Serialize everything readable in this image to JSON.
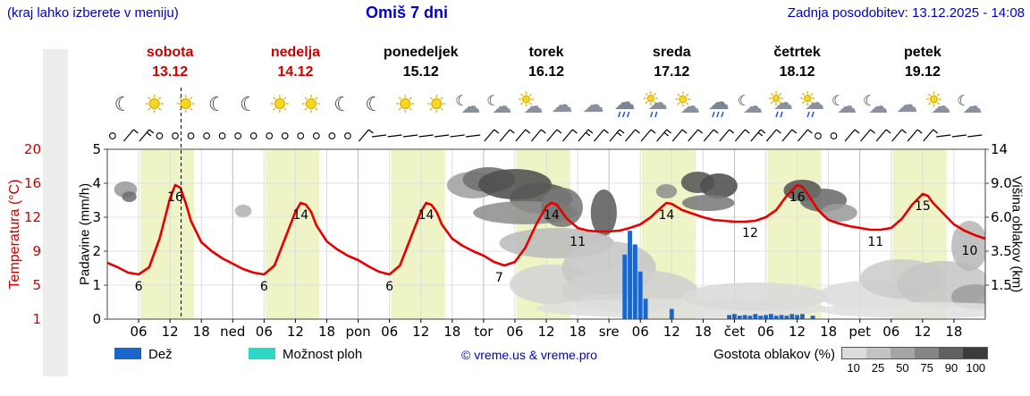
{
  "header": {
    "hint": "(kraj lahko izberete v meniju)",
    "title": "Omiš 7 dni",
    "updated": "Zadnja posodobitev: 13.12.2025 - 14:08"
  },
  "days": [
    {
      "name": "sobota",
      "date": "13.12",
      "weekend": true
    },
    {
      "name": "nedelja",
      "date": "14.12",
      "weekend": true
    },
    {
      "name": "ponedeljek",
      "date": "15.12",
      "weekend": false
    },
    {
      "name": "torek",
      "date": "16.12",
      "weekend": false
    },
    {
      "name": "sreda",
      "date": "17.12",
      "weekend": false
    },
    {
      "name": "četrtek",
      "date": "18.12",
      "weekend": false
    },
    {
      "name": "petek",
      "date": "19.12",
      "weekend": false
    }
  ],
  "axes": {
    "temp_label": "Temperatura (°C)",
    "temp_ticks": [
      "20",
      "16",
      "12",
      "9",
      "5",
      "1"
    ],
    "precip_label": "Padavine (mm/h)",
    "precip_ticks": [
      "5",
      "4",
      "3",
      "2",
      "1",
      "0"
    ],
    "cloud_label": "Višina oblakov (km)",
    "cloud_ticks": [
      "14",
      "9.0",
      "6.0",
      "3.5",
      "1.5"
    ],
    "hour_labels": [
      "06",
      "12",
      "18"
    ],
    "day_abbrevs": [
      "ned",
      "pon",
      "tor",
      "sre",
      "čet",
      "pet"
    ]
  },
  "legend": {
    "rain": "Dež",
    "showers": "Možnost ploh",
    "copyright": "© vreme.us & vreme.pro",
    "cloud_density": "Gostota oblakov (%)",
    "density_ticks": [
      "10",
      "25",
      "50",
      "75",
      "90",
      "100"
    ],
    "rain_color": "#1a66cc",
    "showers_color": "#2fd6c3"
  },
  "colors": {
    "accent_blue": "#0000cd",
    "weekend_red": "#cc0000",
    "temp_line": "#e60000",
    "rain_bar": "#1a66cc",
    "daylight_band": "#eef4c6"
  },
  "chart_data": {
    "type": "line",
    "title": "Omiš 7 dni",
    "x_axis": "time, hours from 13.12.2025 00:00, 7 days, ticks every 6 h",
    "y_axes": {
      "temperature_c": [
        1,
        5,
        9,
        12,
        16,
        20
      ],
      "precip_mmh": [
        0,
        1,
        2,
        3,
        4,
        5
      ],
      "cloud_height_km": [
        1.5,
        3.5,
        6.0,
        9.0,
        14
      ]
    },
    "daylight": [
      6.3,
      16.6
    ],
    "now_hour": 14.13,
    "series": [
      {
        "name": "Temperatura",
        "unit": "°C",
        "kind": "line",
        "color": "#e60000",
        "points": [
          [
            0,
            7.3
          ],
          [
            2,
            6.8
          ],
          [
            4,
            6.2
          ],
          [
            6,
            6
          ],
          [
            8,
            6.8
          ],
          [
            10,
            10
          ],
          [
            12,
            14.5
          ],
          [
            13,
            16
          ],
          [
            14,
            15.7
          ],
          [
            15,
            14
          ],
          [
            16,
            12
          ],
          [
            18,
            9.6
          ],
          [
            20,
            8.6
          ],
          [
            22,
            7.8
          ],
          [
            24,
            7.2
          ],
          [
            26,
            6.6
          ],
          [
            28,
            6.2
          ],
          [
            30,
            6
          ],
          [
            32,
            7
          ],
          [
            34,
            10
          ],
          [
            36,
            13
          ],
          [
            37,
            14
          ],
          [
            38,
            13.8
          ],
          [
            39,
            13
          ],
          [
            40,
            11.5
          ],
          [
            42,
            9.7
          ],
          [
            44,
            8.8
          ],
          [
            46,
            8.1
          ],
          [
            48,
            7.6
          ],
          [
            50,
            6.9
          ],
          [
            52,
            6.3
          ],
          [
            54,
            6
          ],
          [
            56,
            7
          ],
          [
            58,
            10
          ],
          [
            60,
            13
          ],
          [
            61,
            14
          ],
          [
            62,
            13.8
          ],
          [
            63,
            13
          ],
          [
            64,
            11.6
          ],
          [
            66,
            10
          ],
          [
            68,
            9.2
          ],
          [
            70,
            8.6
          ],
          [
            72,
            8.1
          ],
          [
            74,
            7.4
          ],
          [
            76,
            7
          ],
          [
            78,
            7.4
          ],
          [
            80,
            9
          ],
          [
            82,
            11.5
          ],
          [
            84,
            13.6
          ],
          [
            85,
            14
          ],
          [
            86,
            13.8
          ],
          [
            87,
            13
          ],
          [
            88,
            12.2
          ],
          [
            90,
            11.2
          ],
          [
            92,
            10.9
          ],
          [
            94,
            10.8
          ],
          [
            96,
            10.8
          ],
          [
            98,
            10.9
          ],
          [
            100,
            11.2
          ],
          [
            102,
            11.6
          ],
          [
            104,
            12.4
          ],
          [
            106,
            13.5
          ],
          [
            107,
            14
          ],
          [
            108,
            13.9
          ],
          [
            110,
            13.2
          ],
          [
            112,
            12.8
          ],
          [
            114,
            12.4
          ],
          [
            116,
            12.1
          ],
          [
            118,
            12
          ],
          [
            120,
            11.9
          ],
          [
            122,
            11.9
          ],
          [
            124,
            12
          ],
          [
            126,
            12.4
          ],
          [
            128,
            13.2
          ],
          [
            130,
            14.8
          ],
          [
            132,
            16
          ],
          [
            133,
            15.8
          ],
          [
            134,
            15
          ],
          [
            136,
            13.2
          ],
          [
            138,
            12.1
          ],
          [
            140,
            11.7
          ],
          [
            142,
            11.4
          ],
          [
            144,
            11.2
          ],
          [
            146,
            11
          ],
          [
            148,
            11
          ],
          [
            150,
            11.2
          ],
          [
            152,
            12.2
          ],
          [
            154,
            13.8
          ],
          [
            156,
            15
          ],
          [
            157,
            14.8
          ],
          [
            158,
            14
          ],
          [
            160,
            12.8
          ],
          [
            162,
            11.6
          ],
          [
            164,
            10.9
          ],
          [
            166,
            10.4
          ],
          [
            168,
            10
          ]
        ]
      },
      {
        "name": "Dež",
        "unit": "mm/h",
        "kind": "bar",
        "color": "#1a66cc",
        "points": [
          [
            99,
            1.9
          ],
          [
            100,
            2.6
          ],
          [
            101,
            2.2
          ],
          [
            102,
            1.4
          ],
          [
            103,
            0.6
          ],
          [
            108,
            0.3
          ],
          [
            119,
            0.12
          ],
          [
            120,
            0.15
          ],
          [
            121,
            0.1
          ],
          [
            122,
            0.12
          ],
          [
            123,
            0.1
          ],
          [
            124,
            0.15
          ],
          [
            125,
            0.1
          ],
          [
            126,
            0.12
          ],
          [
            127,
            0.15
          ],
          [
            128,
            0.1
          ],
          [
            129,
            0.12
          ],
          [
            130,
            0.1
          ],
          [
            131,
            0.15
          ],
          [
            132,
            0.12
          ],
          [
            133,
            0.15
          ],
          [
            135,
            0.1
          ]
        ]
      }
    ],
    "temp_point_labels": [
      [
        6,
        6
      ],
      [
        13,
        16
      ],
      [
        30,
        6
      ],
      [
        37,
        14
      ],
      [
        54,
        6
      ],
      [
        61,
        14
      ],
      [
        75,
        7
      ],
      [
        85,
        14
      ],
      [
        90,
        11
      ],
      [
        107,
        14
      ],
      [
        123,
        12
      ],
      [
        132,
        16
      ],
      [
        147,
        11
      ],
      [
        156,
        15
      ],
      [
        165,
        10
      ]
    ],
    "icons": [
      [
        "moon",
        "sun",
        "sun",
        "moon"
      ],
      [
        "moon",
        "sun",
        "sun",
        "moon"
      ],
      [
        "moon",
        "sun",
        "sun",
        "cloud-moon"
      ],
      [
        "cloud-moon",
        "sun-cloud",
        "cloud",
        "cloud"
      ],
      [
        "rain",
        "sun-rain",
        "sun-cloud",
        "rain"
      ],
      [
        "cloud-moon",
        "sun-rain",
        "sun-rain",
        "cloud-moon"
      ],
      [
        "cloud-moon",
        "cloud",
        "sun-cloud",
        "cloud-moon"
      ]
    ],
    "wind": [
      [
        1,
        "calm"
      ],
      [
        4,
        "barb"
      ],
      [
        7,
        "barb2"
      ],
      [
        10,
        "calm"
      ],
      [
        13,
        "calm"
      ],
      [
        16,
        "calm"
      ],
      [
        19,
        "calm"
      ],
      [
        22,
        "calm"
      ],
      [
        25,
        "calm"
      ],
      [
        28,
        "calm"
      ],
      [
        31,
        "calm"
      ],
      [
        34,
        "calm"
      ],
      [
        37,
        "calm"
      ],
      [
        40,
        "calm"
      ],
      [
        43,
        "calm"
      ],
      [
        46,
        "calm"
      ],
      [
        49,
        "barb"
      ],
      [
        52,
        "line"
      ],
      [
        55,
        "line"
      ],
      [
        58,
        "line"
      ],
      [
        61,
        "line"
      ],
      [
        64,
        "line"
      ],
      [
        67,
        "line"
      ],
      [
        70,
        "line"
      ],
      [
        73,
        "barb"
      ],
      [
        76,
        "barb"
      ],
      [
        79,
        "barb"
      ],
      [
        82,
        "barb"
      ],
      [
        85,
        "barb"
      ],
      [
        88,
        "barb"
      ],
      [
        91,
        "barb2"
      ],
      [
        94,
        "barb"
      ],
      [
        97,
        "barb2"
      ],
      [
        100,
        "barb"
      ],
      [
        103,
        "barb"
      ],
      [
        106,
        "barb2"
      ],
      [
        109,
        "barb"
      ],
      [
        112,
        "barb"
      ],
      [
        115,
        "barb"
      ],
      [
        118,
        "barb"
      ],
      [
        121,
        "barb"
      ],
      [
        124,
        "barb2"
      ],
      [
        127,
        "barb"
      ],
      [
        130,
        "barb"
      ],
      [
        133,
        "barb"
      ],
      [
        136,
        "calm"
      ],
      [
        139,
        "calm"
      ],
      [
        142,
        "barb"
      ],
      [
        145,
        "barb"
      ],
      [
        148,
        "barb"
      ],
      [
        151,
        "barb"
      ],
      [
        154,
        "barb"
      ],
      [
        157,
        "barb"
      ],
      [
        160,
        "line"
      ],
      [
        163,
        "line"
      ],
      [
        166,
        "line"
      ]
    ],
    "cloud_blobs": [
      [
        3.5,
        212,
        2.2,
        9,
        "#9a9a9a"
      ],
      [
        4.2,
        220,
        1.4,
        6,
        "#6f6f6f"
      ],
      [
        26,
        236,
        1.6,
        7,
        "#b3b3b3"
      ],
      [
        70,
        207,
        5,
        15,
        "#a0a0a0"
      ],
      [
        73,
        201,
        5,
        14,
        "#6f6f6f"
      ],
      [
        78,
        206,
        7,
        17,
        "#4e4e4e"
      ],
      [
        83,
        222,
        6,
        17,
        "#585858"
      ],
      [
        80,
        238,
        10,
        13,
        "#8f8f8f"
      ],
      [
        87,
        232,
        4,
        22,
        "#777777"
      ],
      [
        95,
        238,
        2.5,
        26,
        "#5e5e5e"
      ],
      [
        86,
        272,
        11,
        17,
        "#bcbcbc"
      ],
      [
        85,
        318,
        8,
        22,
        "#d4d4d4"
      ],
      [
        96,
        300,
        9,
        30,
        "#c6c6c6"
      ],
      [
        100,
        325,
        13,
        24,
        "#cfcfcf"
      ],
      [
        110,
        345,
        28,
        11,
        "#dedede"
      ],
      [
        107,
        214,
        2,
        8,
        "#8f8f8f"
      ],
      [
        113,
        204,
        3.2,
        12,
        "#555555"
      ],
      [
        117,
        208,
        3.6,
        14,
        "#4e4e4e"
      ],
      [
        115,
        227,
        5,
        9,
        "#7a7a7a"
      ],
      [
        124,
        332,
        14,
        16,
        "#dadada"
      ],
      [
        133,
        213,
        3.6,
        12,
        "#565656"
      ],
      [
        137,
        224,
        4.5,
        13,
        "#6b6b6b"
      ],
      [
        140,
        238,
        3.5,
        10,
        "#9b9b9b"
      ],
      [
        146,
        330,
        10,
        16,
        "#dcdcdc"
      ],
      [
        152,
        312,
        8,
        22,
        "#cccccc"
      ],
      [
        160,
        318,
        9,
        26,
        "#c6c6c6"
      ],
      [
        165,
        275,
        3.5,
        28,
        "#b8b8b8"
      ],
      [
        166,
        332,
        4.5,
        14,
        "#9e9e9e"
      ],
      [
        156,
        347,
        20,
        9,
        "#e0e0e0"
      ]
    ]
  }
}
